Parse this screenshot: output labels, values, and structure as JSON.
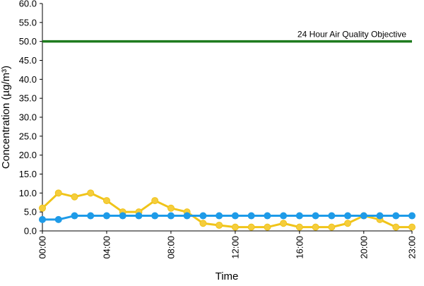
{
  "chart_data": {
    "type": "line",
    "title": "",
    "xlabel": "Time",
    "ylabel": "Concentration (µg/m³)",
    "ylim": [
      0,
      60
    ],
    "yticks": [
      "0.0",
      "5.0",
      "10.0",
      "15.0",
      "20.0",
      "25.0",
      "30.0",
      "35.0",
      "40.0",
      "45.0",
      "50.0",
      "55.0",
      "60.0"
    ],
    "xlim": [
      0,
      23
    ],
    "xtick_hours": [
      0,
      4,
      8,
      12,
      16,
      20,
      23
    ],
    "xtick_labels": [
      "00:00",
      "04:00",
      "08:00",
      "12:00",
      "16:00",
      "20:00",
      "23:00"
    ],
    "grid": false,
    "x": [
      0,
      1,
      2,
      3,
      4,
      5,
      6,
      7,
      8,
      9,
      10,
      11,
      12,
      13,
      14,
      15,
      16,
      17,
      18,
      19,
      20,
      21,
      22,
      23
    ],
    "series": [
      {
        "color": "#F0C419",
        "marker_fill": "#F5CD3C",
        "values": [
          6,
          10,
          9,
          10,
          8,
          5,
          5,
          8,
          6,
          5,
          2,
          1.5,
          1,
          1,
          1,
          2,
          1,
          1,
          1,
          2,
          4,
          3,
          1,
          1
        ]
      },
      {
        "color": "#1E9BE8",
        "marker_fill": "#1E9BE8",
        "values": [
          3,
          3,
          4,
          4,
          4,
          4,
          4,
          4,
          4,
          4,
          4,
          4,
          4,
          4,
          4,
          4,
          4,
          4,
          4,
          4,
          4,
          4,
          4,
          4
        ]
      }
    ],
    "objective": {
      "label": "24 Hour Air Quality Objective",
      "value": 50,
      "color": "#1E7B1E"
    }
  }
}
